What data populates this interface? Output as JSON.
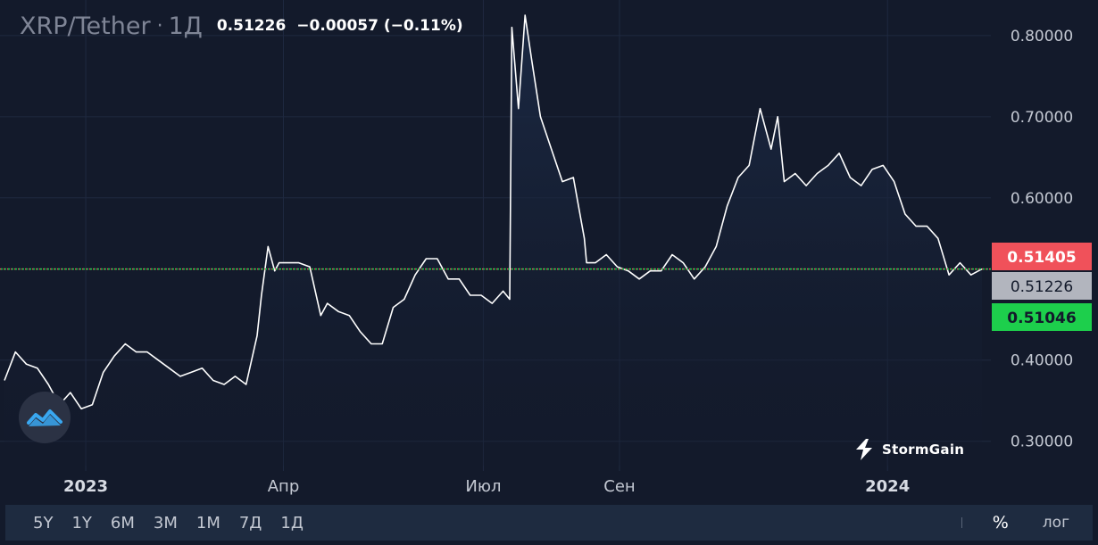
{
  "header": {
    "symbol": "XRP/Tether",
    "separator": "·",
    "interval": "1Д",
    "last_price": "0.51226",
    "change": "−0.00057 (−0.11%)"
  },
  "brand": {
    "name": "StormGain"
  },
  "chart_data": {
    "type": "area",
    "ylim": [
      0.27,
      0.835
    ],
    "y_ticks": [
      "0.30000",
      "0.40000",
      "0.60000",
      "0.70000",
      "0.80000"
    ],
    "x_ticks": [
      {
        "label": "2023",
        "date": "2023-01-01",
        "bold": true
      },
      {
        "label": "Апр",
        "date": "2023-04-01",
        "bold": false
      },
      {
        "label": "Июл",
        "date": "2023-07-01",
        "bold": false
      },
      {
        "label": "Сен",
        "date": "2023-09-01",
        "bold": false
      },
      {
        "label": "2024",
        "date": "2024-01-01",
        "bold": true
      }
    ],
    "grid": true,
    "line_color": "#ffffff",
    "last_price": 0.51226,
    "price_labels": [
      {
        "label": "0.51405",
        "value": 0.51405,
        "color": "#f0515a"
      },
      {
        "label": "0.51226",
        "value": 0.51226,
        "color": "#b2b5be"
      },
      {
        "label": "0.51046",
        "value": 0.51046,
        "color": "#1dcf4c"
      }
    ],
    "series": [
      {
        "x": [
          "2022-11-25",
          "2022-11-30",
          "2022-12-05",
          "2022-12-10",
          "2022-12-15",
          "2022-12-20",
          "2022-12-25",
          "2022-12-30",
          "2023-01-04",
          "2023-01-09",
          "2023-01-14",
          "2023-01-19",
          "2023-01-24",
          "2023-01-29",
          "2023-02-03",
          "2023-02-08",
          "2023-02-13",
          "2023-02-18",
          "2023-02-23",
          "2023-02-28",
          "2023-03-05",
          "2023-03-10",
          "2023-03-15",
          "2023-03-20",
          "2023-03-22",
          "2023-03-25",
          "2023-03-28",
          "2023-03-30",
          "2023-04-03",
          "2023-04-08",
          "2023-04-13",
          "2023-04-18",
          "2023-04-21",
          "2023-04-26",
          "2023-05-01",
          "2023-05-06",
          "2023-05-11",
          "2023-05-16",
          "2023-05-21",
          "2023-05-26",
          "2023-05-31",
          "2023-06-05",
          "2023-06-10",
          "2023-06-15",
          "2023-06-20",
          "2023-06-25",
          "2023-06-30",
          "2023-07-05",
          "2023-07-10",
          "2023-07-13",
          "2023-07-14",
          "2023-07-17",
          "2023-07-20",
          "2023-07-23",
          "2023-07-27",
          "2023-08-01",
          "2023-08-06",
          "2023-08-11",
          "2023-08-16",
          "2023-08-17",
          "2023-08-21",
          "2023-08-26",
          "2023-08-31",
          "2023-09-05",
          "2023-09-10",
          "2023-09-15",
          "2023-09-20",
          "2023-09-25",
          "2023-09-30",
          "2023-10-05",
          "2023-10-10",
          "2023-10-15",
          "2023-10-20",
          "2023-10-25",
          "2023-10-30",
          "2023-11-04",
          "2023-11-09",
          "2023-11-12",
          "2023-11-15",
          "2023-11-20",
          "2023-11-25",
          "2023-11-30",
          "2023-12-05",
          "2023-12-10",
          "2023-12-15",
          "2023-12-20",
          "2023-12-25",
          "2023-12-30",
          "2024-01-04",
          "2024-01-09",
          "2024-01-14",
          "2024-01-19",
          "2024-01-24",
          "2024-01-29",
          "2024-02-03",
          "2024-02-08",
          "2024-02-13"
        ],
        "y": [
          0.375,
          0.41,
          0.395,
          0.39,
          0.37,
          0.345,
          0.36,
          0.34,
          0.345,
          0.385,
          0.405,
          0.42,
          0.41,
          0.41,
          0.4,
          0.39,
          0.38,
          0.385,
          0.39,
          0.375,
          0.37,
          0.38,
          0.37,
          0.43,
          0.48,
          0.54,
          0.51,
          0.52,
          0.52,
          0.52,
          0.515,
          0.455,
          0.47,
          0.46,
          0.455,
          0.435,
          0.42,
          0.42,
          0.465,
          0.475,
          0.505,
          0.525,
          0.525,
          0.5,
          0.5,
          0.48,
          0.48,
          0.47,
          0.485,
          0.475,
          0.81,
          0.71,
          0.825,
          0.77,
          0.7,
          0.66,
          0.62,
          0.625,
          0.55,
          0.52,
          0.52,
          0.53,
          0.515,
          0.51,
          0.5,
          0.51,
          0.51,
          0.53,
          0.52,
          0.5,
          0.515,
          0.54,
          0.59,
          0.625,
          0.64,
          0.71,
          0.66,
          0.7,
          0.62,
          0.63,
          0.615,
          0.63,
          0.64,
          0.655,
          0.625,
          0.615,
          0.635,
          0.64,
          0.62,
          0.58,
          0.565,
          0.565,
          0.55,
          0.505,
          0.52,
          0.505,
          0.51226
        ]
      }
    ]
  },
  "bottom_bar": {
    "ranges": [
      "5Y",
      "1Y",
      "6M",
      "3M",
      "1M",
      "7Д",
      "1Д"
    ],
    "percent_label": "%",
    "log_label": "лог"
  }
}
